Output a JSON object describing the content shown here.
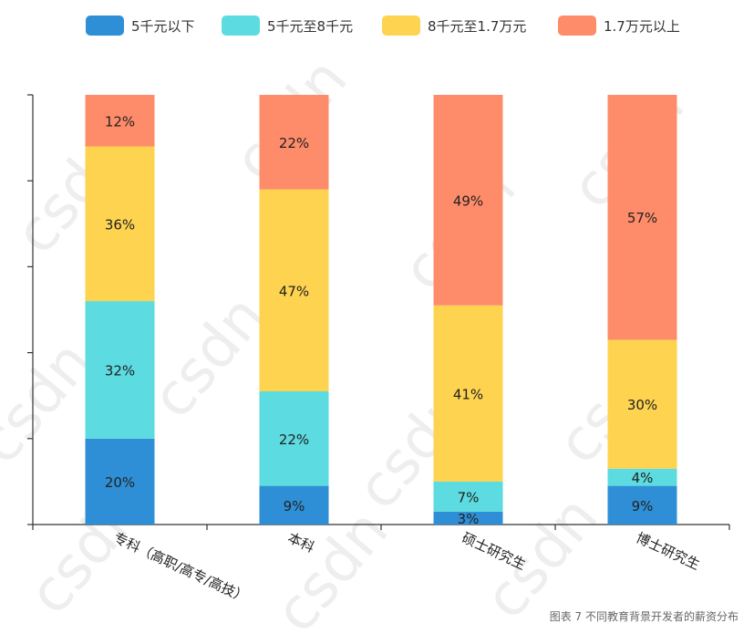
{
  "chart_data": {
    "type": "bar",
    "stacked": true,
    "orientation": "vertical",
    "categories": [
      "专科（高职/高专/高技）",
      "本科",
      "硕士研究生",
      "博士研究生"
    ],
    "series": [
      {
        "name": "5千元以下",
        "color": "#2f8fd6",
        "values": [
          20,
          9,
          3,
          9
        ]
      },
      {
        "name": "5千元至8千元",
        "color": "#5cdbe0",
        "values": [
          32,
          22,
          7,
          4
        ]
      },
      {
        "name": "8千元至1.7万元",
        "color": "#fdd34f",
        "values": [
          36,
          47,
          41,
          30
        ]
      },
      {
        "name": "1.7万元以上",
        "color": "#fe8c6a",
        "values": [
          12,
          22,
          49,
          57
        ]
      }
    ],
    "value_suffix": "%",
    "ylim": [
      0,
      100
    ],
    "legend_position": "top-center",
    "grid": false,
    "caption": "图表 7  不同教育背景开发者的薪资分布",
    "watermark": "csdn"
  }
}
